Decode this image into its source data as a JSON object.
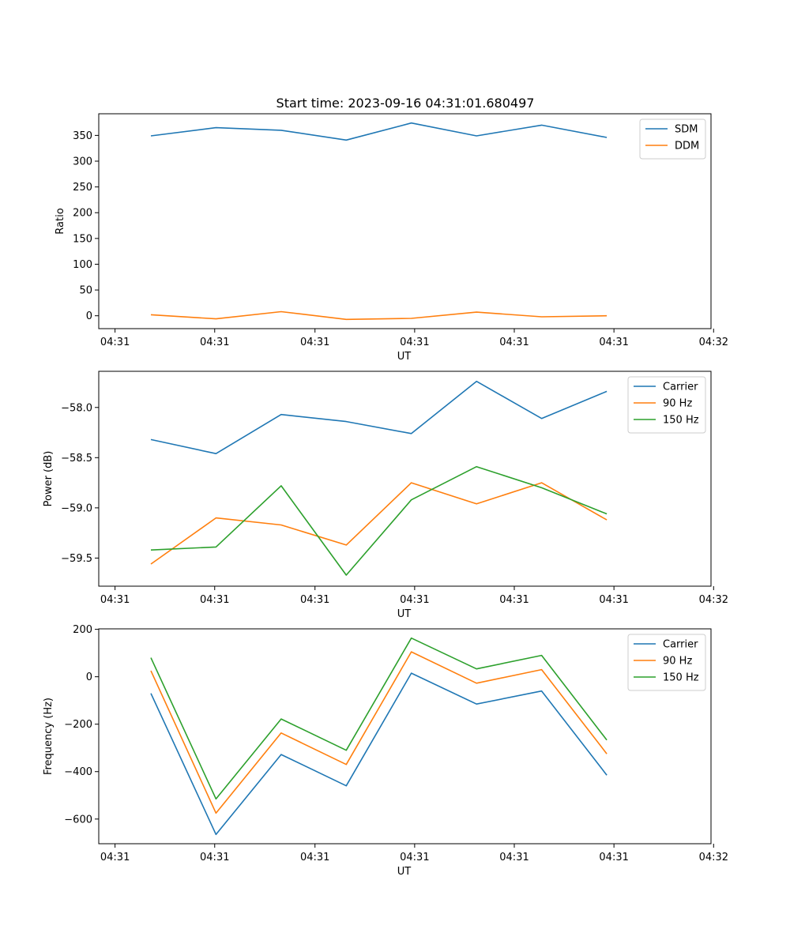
{
  "figure_title": "Start time: 2023-09-16 04:31:01.680497",
  "colors": {
    "blue": "#1f77b4",
    "orange": "#ff7f0e",
    "green": "#2ca02c"
  },
  "chart_data": [
    {
      "type": "line",
      "title": "Start time: 2023-09-16 04:31:01.680497",
      "xlabel": "UT",
      "ylabel": "Ratio",
      "x": [
        1,
        2,
        3,
        4,
        5,
        6,
        7,
        8
      ],
      "xlim": [
        0.2,
        9.6
      ],
      "xticks": [
        0.45,
        1.98,
        3.52,
        5.05,
        6.58,
        8.11,
        9.64
      ],
      "xtick_labels": [
        "04:31",
        "04:31",
        "04:31",
        "04:31",
        "04:31",
        "04:31",
        "04:32"
      ],
      "ylim": [
        -25,
        392
      ],
      "yticks": [
        0,
        50,
        100,
        150,
        200,
        250,
        300,
        350
      ],
      "ytick_labels": [
        "0",
        "50",
        "100",
        "150",
        "200",
        "250",
        "300",
        "350"
      ],
      "legend_position": "top-right",
      "series": [
        {
          "name": "SDM",
          "color": "#1f77b4",
          "values": [
            349,
            365,
            360,
            341,
            374,
            349,
            370,
            346
          ]
        },
        {
          "name": "DDM",
          "color": "#ff7f0e",
          "values": [
            2,
            -6,
            8,
            -7,
            -5,
            7,
            -2,
            0
          ]
        }
      ]
    },
    {
      "type": "line",
      "title": "",
      "xlabel": "UT",
      "ylabel": "Power (dB)",
      "x": [
        1,
        2,
        3,
        4,
        5,
        6,
        7,
        8
      ],
      "xlim": [
        0.2,
        9.6
      ],
      "xticks": [
        0.45,
        1.98,
        3.52,
        5.05,
        6.58,
        8.11,
        9.64
      ],
      "xtick_labels": [
        "04:31",
        "04:31",
        "04:31",
        "04:31",
        "04:31",
        "04:31",
        "04:32"
      ],
      "ylim": [
        -59.78,
        -57.64
      ],
      "yticks": [
        -59.5,
        -59.0,
        -58.5,
        -58.0
      ],
      "ytick_labels": [
        "−59.5",
        "−59.0",
        "−58.5",
        "−58.0"
      ],
      "legend_position": "top-right",
      "series": [
        {
          "name": "Carrier",
          "color": "#1f77b4",
          "values": [
            -58.32,
            -58.46,
            -58.07,
            -58.14,
            -58.26,
            -57.74,
            -58.11,
            -57.84
          ]
        },
        {
          "name": "90 Hz",
          "color": "#ff7f0e",
          "values": [
            -59.56,
            -59.1,
            -59.17,
            -59.37,
            -58.75,
            -58.96,
            -58.75,
            -59.12
          ]
        },
        {
          "name": "150 Hz",
          "color": "#2ca02c",
          "values": [
            -59.42,
            -59.39,
            -58.78,
            -59.67,
            -58.92,
            -58.59,
            -58.8,
            -59.06
          ]
        }
      ]
    },
    {
      "type": "line",
      "title": "",
      "xlabel": "UT",
      "ylabel": "Frequency (Hz)",
      "x": [
        1,
        2,
        3,
        4,
        5,
        6,
        7,
        8
      ],
      "xlim": [
        0.2,
        9.6
      ],
      "xticks": [
        0.45,
        1.98,
        3.52,
        5.05,
        6.58,
        8.11,
        9.64
      ],
      "xtick_labels": [
        "04:31",
        "04:31",
        "04:31",
        "04:31",
        "04:31",
        "04:31",
        "04:32"
      ],
      "ylim": [
        -704,
        202
      ],
      "yticks": [
        -600,
        -400,
        -200,
        0,
        200
      ],
      "ytick_labels": [
        "−600",
        "−400",
        "−200",
        "0",
        "200"
      ],
      "legend_position": "top-right",
      "series": [
        {
          "name": "Carrier",
          "color": "#1f77b4",
          "values": [
            -70,
            -665,
            -328,
            -460,
            15,
            -115,
            -60,
            -415
          ]
        },
        {
          "name": "90 Hz",
          "color": "#ff7f0e",
          "values": [
            25,
            -575,
            -237,
            -370,
            105,
            -27,
            30,
            -325
          ]
        },
        {
          "name": "150 Hz",
          "color": "#2ca02c",
          "values": [
            80,
            -515,
            -178,
            -310,
            163,
            33,
            90,
            -267
          ]
        }
      ]
    }
  ]
}
